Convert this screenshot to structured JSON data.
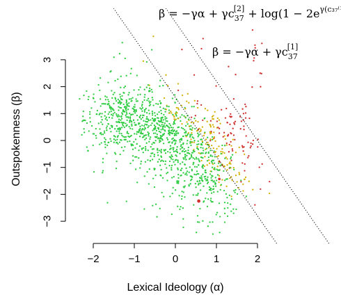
{
  "chart_data": {
    "type": "scatter",
    "xlabel": "Lexical Ideology (α)",
    "ylabel": "Outspokenness (β)",
    "xlim": [
      -2.4,
      2.4
    ],
    "ylim": [
      -3.3,
      3.4
    ],
    "x_ticks": [
      "−2",
      "−1",
      "0",
      "1",
      "2"
    ],
    "y_ticks": [
      "−3",
      "−2",
      "−1",
      "0",
      "1",
      "2",
      "3"
    ],
    "point_colors": {
      "left": "#2ecc40",
      "middle": "#d4b000",
      "right": "#d0312d"
    },
    "density_summary": [
      {
        "region": "left cluster",
        "x_center": -1.3,
        "y_center": 0.8,
        "color": "green"
      },
      {
        "region": "middle band",
        "x_center": -0.1,
        "y_center": 0.0,
        "color": "yellow"
      },
      {
        "region": "right cluster",
        "x_center": 0.8,
        "y_center": -0.8,
        "color": "red"
      }
    ],
    "boundary_lines": [
      {
        "label": "β = −γα + γc₃₇⁽¹⁾",
        "slope": 2.2,
        "intercept": 1.6,
        "style": "dotted"
      },
      {
        "label": "β = −γα + γc₃₇⁽²⁾ + log(1 − 2eᵞ⁽ᶜ₃₇⁽¹⁾⁻ᶜ₃₇⁽²⁾⁾)",
        "slope": 2.2,
        "intercept": 4.4,
        "style": "dotted"
      }
    ]
  },
  "annotations": {
    "line1": {
      "lhs": "β = −γα + γc",
      "sub": "37",
      "sup": "[1]"
    },
    "line2": {
      "lhs": "β = −γα + γc",
      "sub": "37",
      "sup": "[2]",
      "rest": " + log(1 − 2e",
      "exp": "γ(c₃₇⁽¹⁾ − c₃₇⁽²⁾)",
      "close": ")"
    }
  }
}
